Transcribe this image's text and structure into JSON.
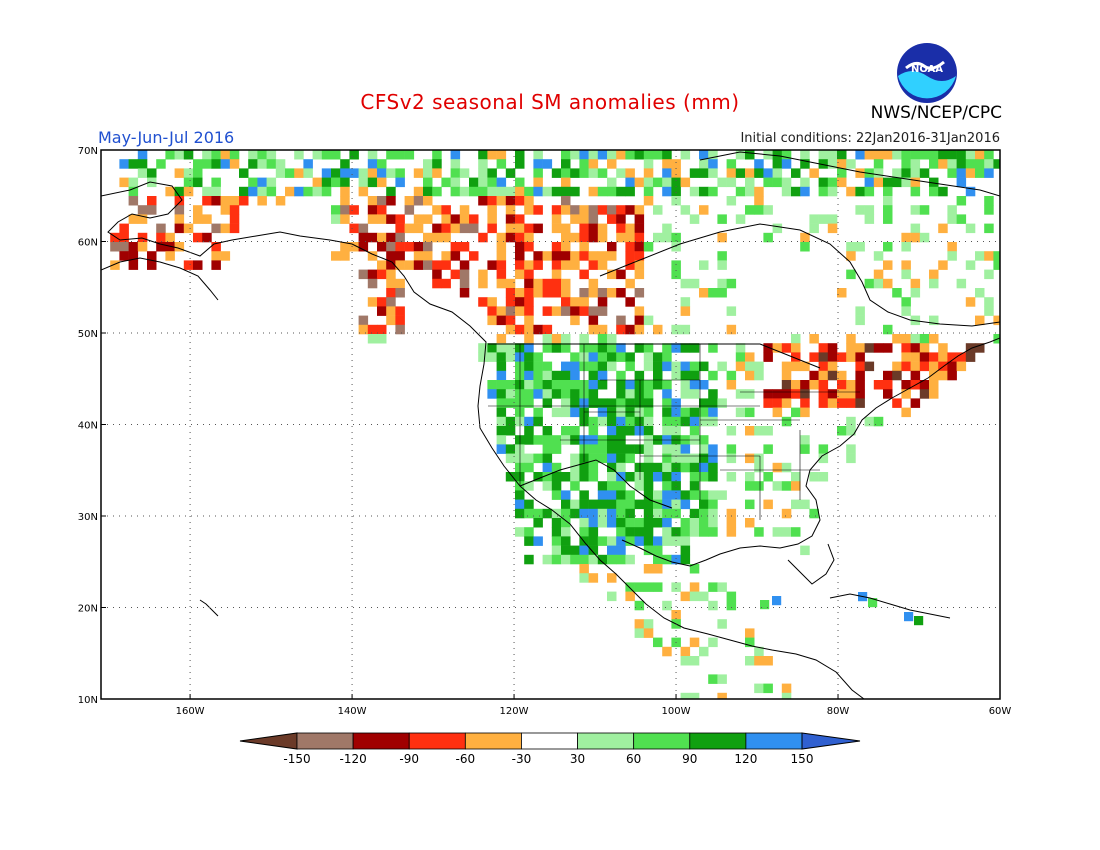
{
  "header": {
    "title": "CFSv2 seasonal SM anomalies (mm)",
    "period": "May-Jun-Jul 2016",
    "initial_conditions": "Initial conditions: 22Jan2016-31Jan2016",
    "agency": "NWS/NCEP/CPC",
    "logo_text": "NOAA"
  },
  "map": {
    "lon_labels": [
      "160W",
      "140W",
      "120W",
      "100W",
      "80W",
      "60W"
    ],
    "lat_labels": [
      "70N",
      "60N",
      "50N",
      "40N",
      "30N",
      "20N",
      "10N"
    ],
    "lon_range": [
      -171,
      -60
    ],
    "lat_range": [
      10,
      70
    ]
  },
  "legend": {
    "labels": [
      "-150",
      "-120",
      "-90",
      "-60",
      "-30",
      "30",
      "60",
      "90",
      "120",
      "150"
    ],
    "colors": [
      "#6b3a28",
      "#a07868",
      "#a00000",
      "#ff3010",
      "#ffb040",
      "#ffffff",
      "#a0f0a0",
      "#50e050",
      "#10a010",
      "#3090f0",
      "#3060d0"
    ]
  }
}
